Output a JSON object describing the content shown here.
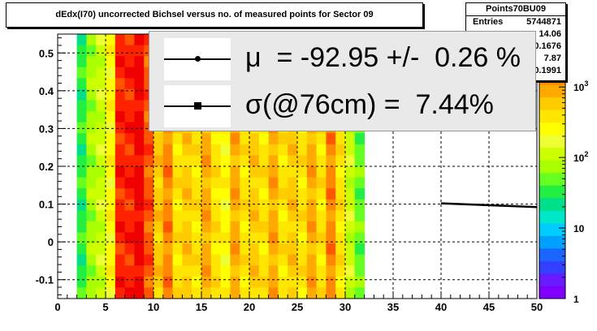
{
  "title": "dEdx(I70) uncorrected Bichsel versus no. of measured points for Sector 09",
  "stats": {
    "name": "Points70BU09",
    "rows": [
      {
        "key": "Entries",
        "value": "5744871"
      },
      {
        "key": "",
        "value": "14.06"
      },
      {
        "key": "",
        "value": "0.1676"
      },
      {
        "key": "",
        "value": "7.87"
      },
      {
        "key": "",
        "value": "0.1991"
      }
    ]
  },
  "legend": {
    "entries": [
      {
        "marker": "circle",
        "text": "μ  = -92.95 +/-  0.26 %"
      },
      {
        "marker": "square",
        "text": "σ(@76cm) =  7.44%"
      }
    ]
  },
  "colors": {
    "palette": [
      "#7f00ff",
      "#6a1aff",
      "#3340ff",
      "#1a66ff",
      "#00a0ff",
      "#00ccff",
      "#00e6c8",
      "#00e08a",
      "#22ee44",
      "#66ff22",
      "#aaff00",
      "#ccff00",
      "#eeff33",
      "#ffff00",
      "#ffe600",
      "#ffcc00",
      "#ffaa00",
      "#ff8800",
      "#ff5500",
      "#ff2200",
      "#ee0000"
    ]
  },
  "chart_data": {
    "type": "heatmap",
    "title": "dEdx(I70) uncorrected Bichsel versus no. of measured points for Sector 09",
    "xlim": [
      0,
      50
    ],
    "ylim": [
      -0.15,
      0.55
    ],
    "x_ticks": [
      "0",
      "5",
      "10",
      "15",
      "20",
      "25",
      "30",
      "35",
      "40",
      "45",
      "50"
    ],
    "y_ticks": [
      "-0.1",
      "0",
      "0.1",
      "0.2",
      "0.3",
      "0.4",
      "0.5"
    ],
    "z_scale": "log",
    "z_ticks": [
      "1",
      "10",
      "10^2",
      "10^3"
    ],
    "grid": true,
    "columns": [
      {
        "x0": 2,
        "x1": 3,
        "level": 8
      },
      {
        "x0": 3,
        "x1": 4,
        "level": 10
      },
      {
        "x0": 4,
        "x1": 5,
        "level": 11
      },
      {
        "x0": 5,
        "x1": 6,
        "level": 13
      },
      {
        "x0": 6,
        "x1": 7,
        "level": 19
      },
      {
        "x0": 7,
        "x1": 8,
        "level": 19
      },
      {
        "x0": 8,
        "x1": 9,
        "level": 20
      },
      {
        "x0": 9,
        "x1": 10,
        "level": 18
      },
      {
        "x0": 10,
        "x1": 11,
        "level": 15
      },
      {
        "x0": 11,
        "x1": 12,
        "level": 17
      },
      {
        "x0": 12,
        "x1": 13,
        "level": 14
      },
      {
        "x0": 13,
        "x1": 14,
        "level": 15
      },
      {
        "x0": 14,
        "x1": 15,
        "level": 14
      },
      {
        "x0": 15,
        "x1": 16,
        "level": 16
      },
      {
        "x0": 16,
        "x1": 17,
        "level": 14
      },
      {
        "x0": 17,
        "x1": 18,
        "level": 13
      },
      {
        "x0": 18,
        "x1": 19,
        "level": 16
      },
      {
        "x0": 19,
        "x1": 20,
        "level": 14
      },
      {
        "x0": 20,
        "x1": 21,
        "level": 15
      },
      {
        "x0": 21,
        "x1": 22,
        "level": 14
      },
      {
        "x0": 22,
        "x1": 23,
        "level": 16
      },
      {
        "x0": 23,
        "x1": 24,
        "level": 14
      },
      {
        "x0": 24,
        "x1": 25,
        "level": 15
      },
      {
        "x0": 25,
        "x1": 26,
        "level": 14
      },
      {
        "x0": 26,
        "x1": 27,
        "level": 16
      },
      {
        "x0": 27,
        "x1": 28,
        "level": 14
      },
      {
        "x0": 28,
        "x1": 29,
        "level": 17
      },
      {
        "x0": 29,
        "x1": 30,
        "level": 14
      },
      {
        "x0": 30,
        "x1": 31,
        "level": 11
      },
      {
        "x0": 31,
        "x1": 32,
        "level": 9
      }
    ],
    "series": [
      {
        "type": "line",
        "x": [
          40,
          50
        ],
        "y": [
          0.102,
          0.092
        ]
      }
    ]
  }
}
